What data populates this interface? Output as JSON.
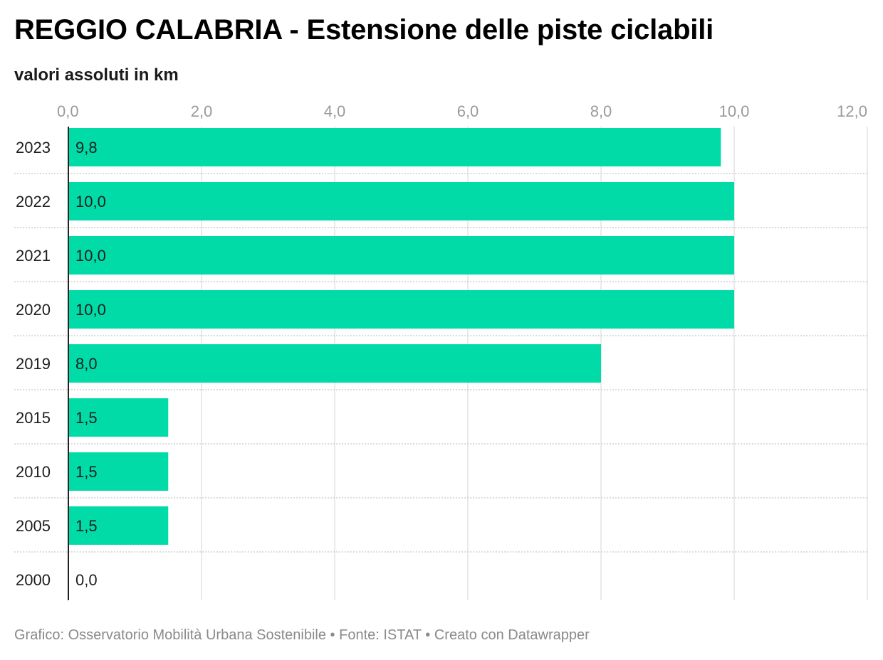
{
  "title": "REGGIO CALABRIA - Estensione delle piste ciclabili",
  "subtitle": "valori assoluti in km",
  "footer": {
    "credit": "Grafico: Osservatorio Mobilità Urbana Sostenibile",
    "separator1": "•",
    "source": "Fonte: ISTAT",
    "separator2": "•",
    "tool": "Creato con Datawrapper"
  },
  "chart_data": {
    "type": "bar",
    "orientation": "horizontal",
    "categories": [
      "2023",
      "2022",
      "2021",
      "2020",
      "2019",
      "2015",
      "2010",
      "2005",
      "2000"
    ],
    "values": [
      9.8,
      10.0,
      10.0,
      10.0,
      8.0,
      1.5,
      1.5,
      1.5,
      0.0
    ],
    "value_labels": [
      "9,8",
      "10,0",
      "10,0",
      "10,0",
      "8,0",
      "1,5",
      "1,5",
      "1,5",
      "0,0"
    ],
    "x_ticks": [
      0,
      2,
      4,
      6,
      8,
      10,
      12
    ],
    "x_tick_labels": [
      "0,0",
      "2,0",
      "4,0",
      "6,0",
      "8,0",
      "10,0",
      "12,0"
    ],
    "xlim": [
      0,
      12
    ],
    "grid": true,
    "bar_color": "#00dba8",
    "axis_position": "top"
  }
}
